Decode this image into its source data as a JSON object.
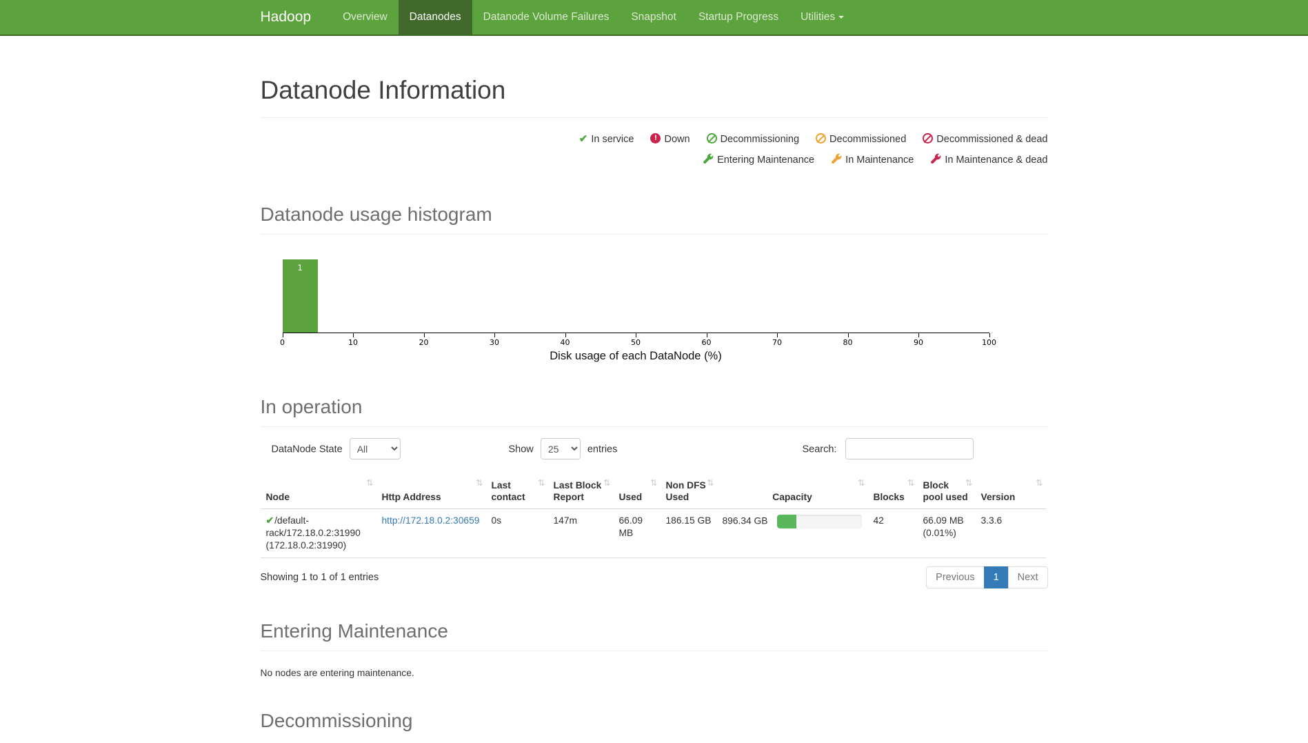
{
  "theme": {
    "navbar_green": "#5ca23d",
    "navbar_active_green": "#41692c",
    "success_green": "#4ba83c",
    "warning_orange": "#f0a22e",
    "danger_red": "#c7254e",
    "link_blue": "#337ab7",
    "pagination_active_blue": "#337ab7",
    "histogram_bar_green": "#5ca23d",
    "capacity_bar_green": "#5bb75c"
  },
  "navbar": {
    "brand": "Hadoop",
    "items": [
      {
        "label": "Overview",
        "active": false
      },
      {
        "label": "Datanodes",
        "active": true
      },
      {
        "label": "Datanode Volume Failures",
        "active": false
      },
      {
        "label": "Snapshot",
        "active": false
      },
      {
        "label": "Startup Progress",
        "active": false
      },
      {
        "label": "Utilities",
        "active": false,
        "dropdown": true
      }
    ]
  },
  "page": {
    "title": "Datanode Information"
  },
  "legend": {
    "items": [
      {
        "icon": "check-icon",
        "label": "In service",
        "color": "#4ba83c"
      },
      {
        "icon": "exclamation-circle-icon",
        "label": "Down",
        "color": "#c7254e"
      },
      {
        "icon": "ban-circle-icon",
        "label": "Decommissioning",
        "color": "#4ba83c"
      },
      {
        "icon": "ban-circle-icon",
        "label": "Decommissioned",
        "color": "#f0a22e"
      },
      {
        "icon": "ban-circle-icon",
        "label": "Decommissioned & dead",
        "color": "#c7254e"
      },
      {
        "icon": "wrench-icon",
        "label": "Entering Maintenance",
        "color": "#4ba83c"
      },
      {
        "icon": "wrench-icon",
        "label": "In Maintenance",
        "color": "#f0a22e"
      },
      {
        "icon": "wrench-icon",
        "label": "In Maintenance & dead",
        "color": "#c7254e"
      }
    ]
  },
  "histogram_section": {
    "title": "Datanode usage histogram"
  },
  "chart_data": {
    "type": "bar",
    "title": "Datanode usage histogram",
    "xlabel": "Disk usage of each DataNode (%)",
    "ylabel": "",
    "xlim": [
      0,
      100
    ],
    "ylim": [
      0,
      1
    ],
    "x_ticks": [
      0,
      10,
      20,
      30,
      40,
      50,
      60,
      70,
      80,
      90,
      100
    ],
    "bins": [
      {
        "range": [
          0,
          5
        ],
        "count": 1
      }
    ],
    "bar_color": "#5ca23d",
    "grid": false,
    "legend_position": "none"
  },
  "operation": {
    "title": "In operation",
    "controls": {
      "state_label": "DataNode State",
      "state_value": "All",
      "show_label": "Show",
      "show_value": "25",
      "entries_label": "entries",
      "search_label": "Search:",
      "search_value": ""
    },
    "table": {
      "headers": [
        "Node",
        "Http Address",
        "Last contact",
        "Last Block Report",
        "Used",
        "Non DFS Used",
        "Capacity",
        "Blocks",
        "Block pool used",
        "Version"
      ],
      "row": {
        "status": "In service",
        "node": "/default-rack/172.18.0.2:31990 (172.18.0.2:31990)",
        "http_address": "http://172.18.0.2:30659",
        "last_contact": "0s",
        "last_block_report": "147m",
        "used": "66.09 MB",
        "non_dfs_used": "186.15 GB",
        "capacity": "896.34 GB",
        "capacity_used_percent": 22,
        "blocks": "42",
        "block_pool_used": "66.09 MB",
        "block_pool_used_percent": "(0.01%)",
        "version": "3.3.6"
      },
      "info": "Showing 1 to 1 of 1 entries",
      "pagination": {
        "previous": "Previous",
        "page": "1",
        "next": "Next"
      }
    }
  },
  "entering_maintenance": {
    "title": "Entering Maintenance",
    "message": "No nodes are entering maintenance."
  },
  "decommissioning": {
    "title": "Decommissioning"
  }
}
